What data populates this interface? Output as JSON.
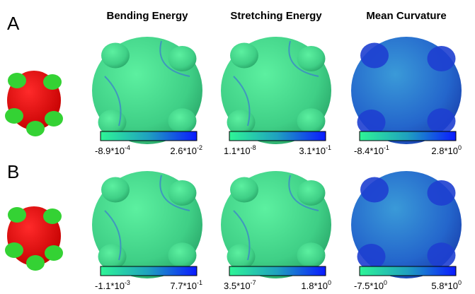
{
  "columns": [
    "Bending Energy",
    "Stretching Energy",
    "Mean Curvature"
  ],
  "panels": [
    {
      "label": "A",
      "colorbars": [
        {
          "min": {
            "base": "-8.9*10",
            "exp": "-4"
          },
          "max": {
            "base": "2.6*10",
            "exp": "-2"
          }
        },
        {
          "min": {
            "base": "1.1*10",
            "exp": "-8"
          },
          "max": {
            "base": "3.1*10",
            "exp": "-1"
          }
        },
        {
          "min": {
            "base": "-8.4*10",
            "exp": "-1"
          },
          "max": {
            "base": "2.8*10",
            "exp": "0"
          }
        }
      ]
    },
    {
      "label": "B",
      "colorbars": [
        {
          "min": {
            "base": "-1.1*10",
            "exp": "-3"
          },
          "max": {
            "base": "7.7*10",
            "exp": "-1"
          }
        },
        {
          "min": {
            "base": "3.5*10",
            "exp": "-7"
          },
          "max": {
            "base": "1.8*10",
            "exp": "0"
          }
        },
        {
          "min": {
            "base": "-7.5*10",
            "exp": "0"
          },
          "max": {
            "base": "5.8*10",
            "exp": "0"
          }
        }
      ]
    }
  ]
}
